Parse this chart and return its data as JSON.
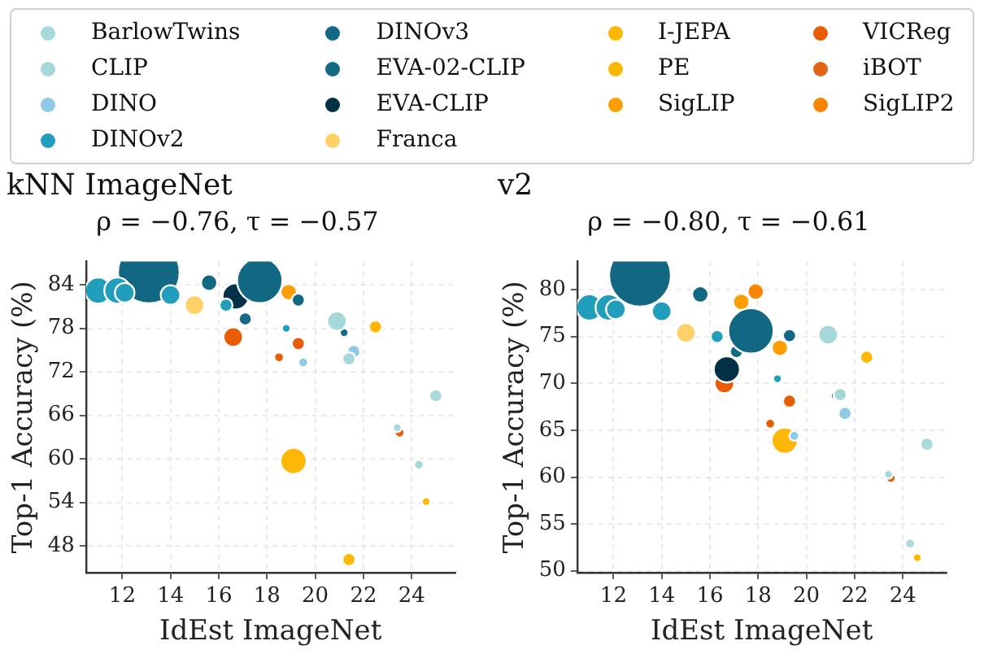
{
  "chart_data": [
    {
      "type": "bubble",
      "title": "kNN ImageNet",
      "subtitle": "ρ = −0.76, τ = −0.57",
      "xlabel": "IdEst ImageNet",
      "ylabel": "Top-1 Accuracy (%)",
      "xlim": [
        10.5,
        25.8
      ],
      "xticks": [
        12,
        14,
        16,
        18,
        20,
        22,
        24
      ],
      "ylim": [
        44.3,
        87.2
      ],
      "yticks": [
        48,
        54,
        60,
        66,
        72,
        78,
        84
      ],
      "grid": true,
      "legend": "top",
      "marker": "circle",
      "relative": false,
      "series": [
        {
          "name": "BarlowTwins",
          "color": "#a8dadc",
          "x": [
            25.0,
            24.3
          ],
          "values": [
            68.7,
            59.2
          ],
          "sizes": [
            0.045,
            0.025
          ]
        },
        {
          "name": "CLIP",
          "color": "#a6d8da",
          "x": [
            20.9,
            21.4,
            23.4
          ],
          "values": [
            79.0,
            73.8,
            64.3
          ],
          "sizes": [
            0.1,
            0.045,
            0.02
          ]
        },
        {
          "name": "DINO",
          "color": "#8ecae6",
          "x": [
            19.5,
            21.6
          ],
          "values": [
            73.3,
            74.8
          ],
          "sizes": [
            0.025,
            0.045
          ]
        },
        {
          "name": "DINOv2",
          "color": "#219ebc",
          "x": [
            11.0,
            11.8,
            12.1,
            14.0,
            16.3,
            18.8
          ],
          "values": [
            83.2,
            83.2,
            82.9,
            82.6,
            81.2,
            78.0
          ],
          "sizes": [
            0.18,
            0.18,
            0.1,
            0.1,
            0.045,
            0.02
          ]
        },
        {
          "name": "DINOv3",
          "color": "#126782",
          "x": [
            13.1,
            17.7,
            15.6,
            19.3
          ],
          "values": [
            85.7,
            84.6,
            84.3,
            81.9
          ],
          "sizes": [
            1,
            0.54,
            0.07,
            0.045
          ]
        },
        {
          "name": "EVA-02-CLIP",
          "color": "#156b86",
          "x": [
            17.1,
            21.2
          ],
          "values": [
            79.3,
            77.4
          ],
          "sizes": [
            0.045,
            0.02
          ]
        },
        {
          "name": "EVA-CLIP",
          "color": "#023047",
          "x": [
            16.7
          ],
          "values": [
            82.4
          ],
          "sizes": [
            0.18
          ]
        },
        {
          "name": "Franca",
          "color": "#ffd166",
          "x": [
            15.0
          ],
          "values": [
            81.2
          ],
          "sizes": [
            0.1
          ]
        },
        {
          "name": "I-JEPA",
          "color": "#ffb703",
          "x": [
            22.5,
            24.6
          ],
          "values": [
            78.2,
            54.1
          ],
          "sizes": [
            0.045,
            0.02
          ]
        },
        {
          "name": "PE",
          "color": "#fdb704",
          "x": [
            19.1,
            21.4
          ],
          "values": [
            59.7,
            46.1
          ],
          "sizes": [
            0.18,
            0.045
          ]
        },
        {
          "name": "SigLIP",
          "color": "#fd9e02",
          "x": [
            18.9
          ],
          "values": [
            83.0
          ],
          "sizes": [
            0.07
          ]
        },
        {
          "name": "VICReg",
          "color": "#e85d04",
          "x": [
            16.6,
            19.3,
            18.5
          ],
          "values": [
            76.8,
            75.9,
            74.0
          ],
          "sizes": [
            0.1,
            0.045,
            0.025
          ]
        },
        {
          "name": "iBOT",
          "color": "#e36414",
          "x": [
            23.5
          ],
          "values": [
            63.6
          ],
          "sizes": [
            0.025
          ]
        }
      ]
    },
    {
      "type": "bubble",
      "title": "v2",
      "subtitle": "ρ = −0.80, τ = −0.61",
      "xlabel": "IdEst ImageNet",
      "ylabel": "Top-1 Accuracy (%)",
      "xlim": [
        10.5,
        25.8
      ],
      "xticks": [
        12,
        14,
        16,
        18,
        20,
        22,
        24
      ],
      "ylim": [
        49.8,
        83.0
      ],
      "yticks": [
        50,
        55,
        60,
        65,
        70,
        75,
        80
      ],
      "grid": true,
      "legend": "top",
      "marker": "circle",
      "relative": false,
      "series": [
        {
          "name": "BarlowTwins",
          "color": "#a8dadc",
          "x": [
            25.0,
            24.3
          ],
          "values": [
            63.5,
            52.9
          ],
          "sizes": [
            0.045,
            0.025
          ]
        },
        {
          "name": "CLIP",
          "color": "#a6d8da",
          "x": [
            20.9,
            21.4,
            23.4
          ],
          "values": [
            75.2,
            68.8,
            60.3
          ],
          "sizes": [
            0.1,
            0.045,
            0.02
          ]
        },
        {
          "name": "DINO",
          "color": "#8ecae6",
          "x": [
            19.5,
            21.6
          ],
          "values": [
            64.4,
            66.8
          ],
          "sizes": [
            0.025,
            0.045
          ]
        },
        {
          "name": "DINOv2",
          "color": "#219ebc",
          "x": [
            11.0,
            11.8,
            12.1,
            14.0,
            16.3,
            18.8
          ],
          "values": [
            78.1,
            78.1,
            77.9,
            77.7,
            75.0,
            70.5
          ],
          "sizes": [
            0.18,
            0.18,
            0.1,
            0.1,
            0.045,
            0.02
          ]
        },
        {
          "name": "DINOv3",
          "color": "#126782",
          "x": [
            13.1,
            17.7,
            15.6,
            19.3
          ],
          "values": [
            81.5,
            75.6,
            79.5,
            75.1
          ],
          "sizes": [
            1,
            0.54,
            0.07,
            0.045
          ]
        },
        {
          "name": "EVA-02-CLIP",
          "color": "#156b86",
          "x": [
            17.1,
            21.2
          ],
          "values": [
            73.4,
            68.7
          ],
          "sizes": [
            0.045,
            0.02
          ]
        },
        {
          "name": "EVA-CLIP",
          "color": "#023047",
          "x": [
            16.7
          ],
          "values": [
            71.5
          ],
          "sizes": [
            0.18
          ]
        },
        {
          "name": "Franca",
          "color": "#ffd166",
          "x": [
            15.0
          ],
          "values": [
            75.4
          ],
          "sizes": [
            0.1
          ]
        },
        {
          "name": "I-JEPA",
          "color": "#ffb703",
          "x": [
            22.5,
            24.6
          ],
          "values": [
            72.8,
            51.4
          ],
          "sizes": [
            0.045,
            0.02
          ]
        },
        {
          "name": "PE",
          "color": "#fdb704",
          "x": [
            19.1
          ],
          "values": [
            63.9
          ],
          "sizes": [
            0.18
          ]
        },
        {
          "name": "SigLIP",
          "color": "#fd9e02",
          "x": [
            18.9,
            17.3
          ],
          "values": [
            73.8,
            78.7
          ],
          "sizes": [
            0.07,
            0.07
          ]
        },
        {
          "name": "SigLIP2",
          "color": "#fb8500",
          "x": [
            17.9
          ],
          "values": [
            79.8
          ],
          "sizes": [
            0.07
          ]
        },
        {
          "name": "VICReg",
          "color": "#e85d04",
          "x": [
            16.6,
            19.3,
            18.5
          ],
          "values": [
            70.0,
            68.1,
            65.7
          ],
          "sizes": [
            0.1,
            0.045,
            0.025
          ]
        },
        {
          "name": "iBOT",
          "color": "#e36414",
          "x": [
            23.5
          ],
          "values": [
            59.9
          ],
          "sizes": [
            0.025
          ]
        }
      ]
    }
  ]
}
